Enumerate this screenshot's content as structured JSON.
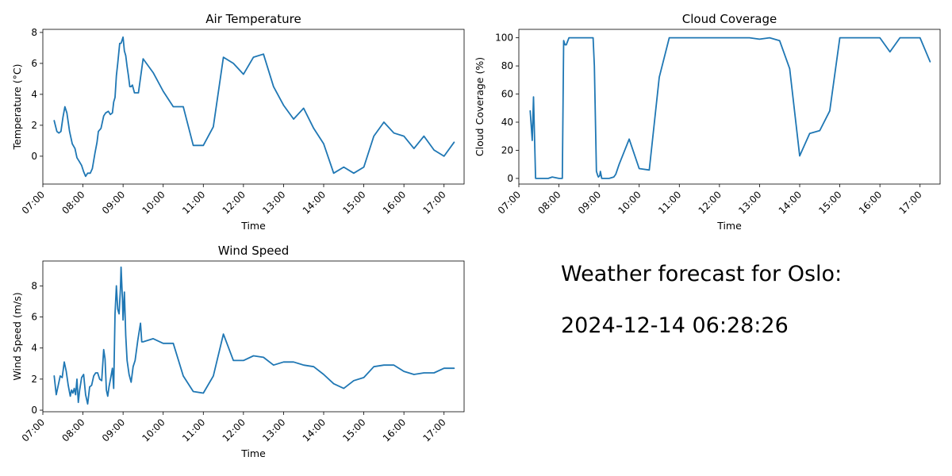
{
  "chart_data": [
    {
      "type": "line",
      "title": "Air Temperature",
      "xlabel": "Time",
      "ylabel": "Temperature (°C)",
      "color": "#1f77b4",
      "xlim": [
        "07:00",
        "17:30"
      ],
      "ylim": [
        -1.8,
        8.2
      ],
      "xticks": [
        "07:00",
        "08:00",
        "09:00",
        "10:00",
        "11:00",
        "12:00",
        "13:00",
        "14:00",
        "15:00",
        "16:00",
        "17:00"
      ],
      "yticks": [
        0,
        2,
        4,
        6,
        8
      ],
      "series": [
        {
          "x": [
            "07:17",
            "07:21",
            "07:24",
            "07:27",
            "07:30",
            "07:33",
            "07:36",
            "07:38",
            "07:40",
            "07:44",
            "07:48",
            "07:51",
            "07:54",
            "07:58",
            "08:01",
            "08:04",
            "08:07",
            "08:11",
            "08:14",
            "08:18",
            "08:21",
            "08:23",
            "08:27",
            "08:31",
            "08:34",
            "08:38",
            "08:41",
            "08:44",
            "08:46",
            "08:48",
            "08:50",
            "08:52",
            "08:55",
            "08:57",
            "09:00",
            "09:02",
            "09:04",
            "09:06",
            "09:08",
            "09:10",
            "09:12",
            "09:14",
            "09:17",
            "09:20",
            "09:23",
            "09:30",
            "09:45",
            "10:00",
            "10:15",
            "10:30",
            "10:45",
            "11:00",
            "11:15",
            "11:30",
            "11:45",
            "12:00",
            "12:15",
            "12:30",
            "12:45",
            "13:00",
            "13:15",
            "13:30",
            "13:45",
            "14:00",
            "14:15",
            "14:30",
            "14:45",
            "15:00",
            "15:15",
            "15:30",
            "15:45",
            "16:00",
            "16:15",
            "16:30",
            "16:45",
            "17:00",
            "17:15"
          ],
          "y": [
            2.3,
            1.6,
            1.5,
            1.6,
            2.5,
            3.2,
            2.8,
            2.2,
            1.6,
            0.8,
            0.5,
            -0.1,
            -0.3,
            -0.6,
            -1.0,
            -1.3,
            -1.1,
            -1.1,
            -0.8,
            0.2,
            0.9,
            1.6,
            1.8,
            2.6,
            2.8,
            2.9,
            2.7,
            2.8,
            3.5,
            3.8,
            5.2,
            6.0,
            7.3,
            7.3,
            7.7,
            6.8,
            6.5,
            5.8,
            5.2,
            4.5,
            4.5,
            4.6,
            4.1,
            4.1,
            4.1,
            6.3,
            5.4,
            4.2,
            3.2,
            3.2,
            0.7,
            0.7,
            1.9,
            6.4,
            6.0,
            5.3,
            6.4,
            6.6,
            4.5,
            3.3,
            2.4,
            3.1,
            1.8,
            0.8,
            -1.1,
            -0.7,
            -1.1,
            -0.7,
            1.3,
            2.2,
            1.5,
            1.3,
            0.5,
            1.3,
            0.4,
            0.0,
            0.9
          ]
        }
      ]
    },
    {
      "type": "line",
      "title": "Cloud Coverage",
      "xlabel": "Time",
      "ylabel": "Cloud Coverage (%)",
      "color": "#1f77b4",
      "xlim": [
        "07:00",
        "17:30"
      ],
      "ylim": [
        -4,
        106
      ],
      "xticks": [
        "07:00",
        "08:00",
        "09:00",
        "10:00",
        "11:00",
        "12:00",
        "13:00",
        "14:00",
        "15:00",
        "16:00",
        "17:00"
      ],
      "yticks": [
        0,
        20,
        40,
        60,
        80,
        100
      ],
      "series": [
        {
          "x": [
            "07:17",
            "07:20",
            "07:22",
            "07:25",
            "07:33",
            "07:38",
            "07:44",
            "07:50",
            "08:00",
            "08:05",
            "08:07",
            "08:09",
            "08:11",
            "08:15",
            "08:25",
            "08:35",
            "08:43",
            "08:51",
            "08:53",
            "08:56",
            "08:58",
            "08:59",
            "09:01",
            "09:02",
            "09:04",
            "09:06",
            "09:15",
            "09:22",
            "09:25",
            "09:30",
            "09:45",
            "10:00",
            "10:15",
            "10:30",
            "10:45",
            "11:00",
            "11:15",
            "11:30",
            "11:45",
            "12:00",
            "12:15",
            "12:30",
            "12:45",
            "13:00",
            "13:15",
            "13:30",
            "13:45",
            "14:00",
            "14:15",
            "14:30",
            "14:45",
            "15:00",
            "15:15",
            "15:30",
            "15:45",
            "16:00",
            "16:15",
            "16:30",
            "16:45",
            "17:00",
            "17:15"
          ],
          "y": [
            48,
            27,
            58,
            0,
            0,
            0,
            0,
            1,
            0,
            0,
            98,
            95,
            95,
            100,
            100,
            100,
            100,
            100,
            80,
            5,
            2,
            1,
            2,
            5,
            0,
            0,
            0,
            1,
            3,
            10,
            28,
            7,
            6,
            72,
            100,
            100,
            100,
            100,
            100,
            100,
            100,
            100,
            100,
            99,
            100,
            98,
            78,
            16,
            32,
            34,
            48,
            100,
            100,
            100,
            100,
            100,
            90,
            100,
            100,
            100,
            83
          ]
        }
      ]
    },
    {
      "type": "line",
      "title": "Wind Speed",
      "xlabel": "Time",
      "ylabel": "Wind Speed (m/s)",
      "color": "#1f77b4",
      "xlim": [
        "07:00",
        "17:30"
      ],
      "ylim": [
        -0.1,
        9.6
      ],
      "xticks": [
        "07:00",
        "08:00",
        "09:00",
        "10:00",
        "11:00",
        "12:00",
        "13:00",
        "14:00",
        "15:00",
        "16:00",
        "17:00"
      ],
      "yticks": [
        0,
        2,
        4,
        6,
        8
      ],
      "series": [
        {
          "x": [
            "07:17",
            "07:20",
            "07:23",
            "07:26",
            "07:29",
            "07:32",
            "07:35",
            "07:38",
            "07:41",
            "07:43",
            "07:45",
            "07:47",
            "07:49",
            "07:51",
            "07:53",
            "07:55",
            "07:58",
            "08:01",
            "08:04",
            "08:07",
            "08:10",
            "08:13",
            "08:16",
            "08:19",
            "08:22",
            "08:25",
            "08:28",
            "08:31",
            "08:33",
            "08:35",
            "08:37",
            "08:39",
            "08:42",
            "08:44",
            "08:46",
            "08:48",
            "08:50",
            "08:52",
            "08:54",
            "08:56",
            "08:57",
            "08:59",
            "09:00",
            "09:02",
            "09:04",
            "09:06",
            "09:09",
            "09:12",
            "09:15",
            "09:18",
            "09:22",
            "09:26",
            "09:28",
            "09:30",
            "09:45",
            "10:00",
            "10:15",
            "10:30",
            "10:45",
            "11:00",
            "11:15",
            "11:30",
            "11:45",
            "12:00",
            "12:15",
            "12:30",
            "12:45",
            "13:00",
            "13:15",
            "13:30",
            "13:45",
            "14:00",
            "14:15",
            "14:30",
            "14:45",
            "15:00",
            "15:15",
            "15:30",
            "15:45",
            "16:00",
            "16:15",
            "16:30",
            "16:45",
            "17:00",
            "17:15"
          ],
          "y": [
            2.2,
            1.0,
            1.6,
            2.2,
            2.1,
            3.1,
            2.5,
            1.6,
            0.9,
            1.3,
            1.1,
            1.4,
            1.0,
            2.0,
            0.5,
            1.3,
            2.1,
            2.3,
            1.0,
            0.4,
            1.5,
            1.6,
            2.2,
            2.4,
            2.4,
            2.0,
            1.9,
            3.9,
            3.3,
            1.3,
            0.9,
            1.5,
            2.2,
            2.7,
            1.4,
            6.2,
            8.0,
            6.5,
            6.2,
            7.8,
            9.2,
            7.2,
            5.8,
            7.6,
            4.8,
            3.2,
            2.3,
            1.8,
            2.8,
            3.2,
            4.5,
            5.6,
            4.4,
            4.4,
            4.6,
            4.3,
            4.3,
            2.2,
            1.2,
            1.1,
            2.2,
            4.9,
            3.2,
            3.2,
            3.5,
            3.4,
            2.9,
            3.1,
            3.1,
            2.9,
            2.8,
            2.3,
            1.7,
            1.4,
            1.9,
            2.1,
            2.8,
            2.9,
            2.9,
            2.5,
            2.3,
            2.4,
            2.4,
            2.7,
            2.7
          ]
        }
      ]
    }
  ],
  "forecast": {
    "line1": "Weather forecast for Oslo:",
    "line2": "2024-12-14 06:28:26"
  }
}
